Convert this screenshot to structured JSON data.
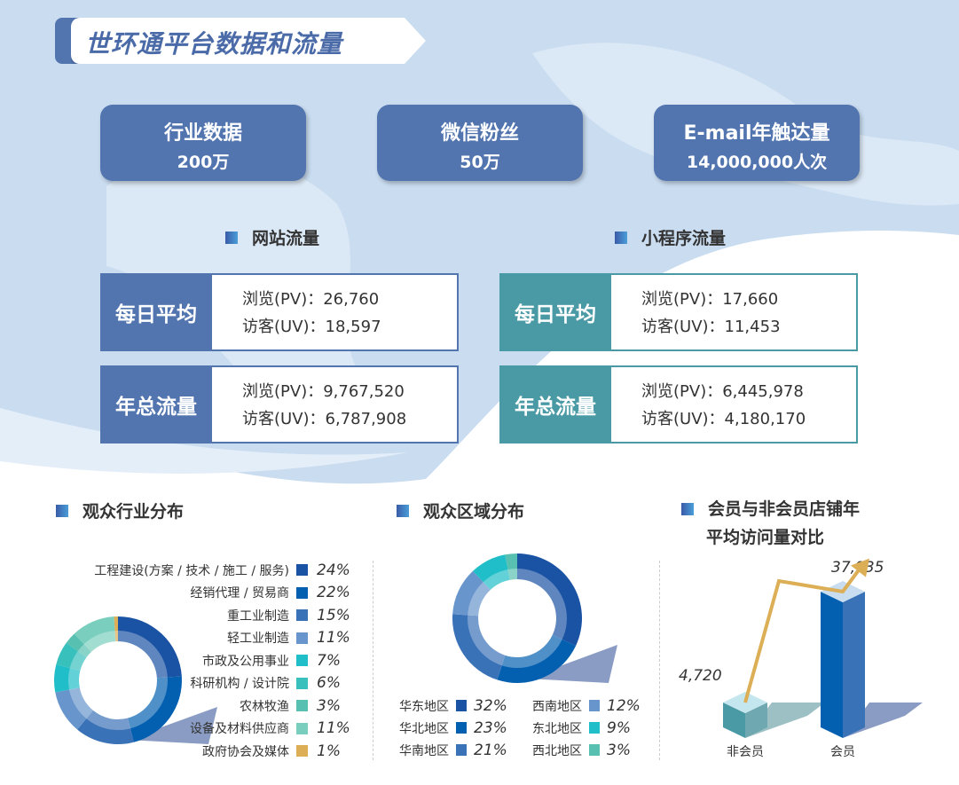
{
  "title": "世环通平台数据和流量",
  "stats": [
    {
      "label": "行业数据",
      "value": "200万"
    },
    {
      "label": "微信粉丝",
      "value": "50万"
    },
    {
      "label": "E-mail年触达量",
      "value": "14,000,000人次"
    }
  ],
  "website": {
    "title": "网站流量",
    "daily": {
      "label": "每日平均",
      "pv": "浏览(PV)：26,760",
      "uv": "访客(UV)：18,597"
    },
    "yearly": {
      "label": "年总流量",
      "pv": "浏览(PV)：9,767,520",
      "uv": "访客(UV)：6,787,908"
    }
  },
  "miniprogram": {
    "title": "小程序流量",
    "daily": {
      "label": "每日平均",
      "pv": "浏览(PV)：17,660",
      "uv": "访客(UV)：11,453"
    },
    "yearly": {
      "label": "年总流量",
      "pv": "浏览(PV)：6,445,978",
      "uv": "访客(UV)：4,180,170"
    }
  },
  "colors": {
    "primary": "#5275b0",
    "teal": "#4a9aa5",
    "gold": "#dcae55"
  },
  "chart_data": [
    {
      "type": "pie",
      "title": "观众行业分布",
      "categories": [
        "工程建设(方案 / 技术 / 施工 / 服务)",
        "经销代理 / 贸易商",
        "重工业制造",
        "轻工业制造",
        "市政及公用事业",
        "科研机构 / 设计院",
        "农林牧渔",
        "设备及材料供应商",
        "政府协会及媒体"
      ],
      "values": [
        24,
        22,
        15,
        11,
        7,
        6,
        3,
        11,
        1
      ],
      "labels": [
        "24%",
        "22%",
        "15%",
        "11%",
        "7%",
        "6%",
        "3%",
        "11%",
        "1%"
      ],
      "colors": [
        "#1a52a4",
        "#0360b0",
        "#3a72b8",
        "#6895cc",
        "#20bec8",
        "#38c0bc",
        "#58c0b0",
        "#7acebe",
        "#dcae55"
      ],
      "legend": "right"
    },
    {
      "type": "pie",
      "title": "观众区域分布",
      "categories": [
        "华东地区",
        "华北地区",
        "华南地区",
        "西南地区",
        "东北地区",
        "西北地区"
      ],
      "values": [
        32,
        23,
        21,
        12,
        9,
        3
      ],
      "labels": [
        "32%",
        "23%",
        "21%",
        "12%",
        "9%",
        "3%"
      ],
      "colors": [
        "#1a52a4",
        "#0360b0",
        "#3a72b8",
        "#6895cc",
        "#20bec8",
        "#58c0b0"
      ],
      "legend": "bottom"
    },
    {
      "type": "bar",
      "title_line1": "会员与非会员店铺年",
      "title_line2": "平均访问量对比",
      "categories": [
        "非会员",
        "会员"
      ],
      "values": [
        4720,
        37935
      ],
      "labels": [
        "4,720",
        "37,935"
      ],
      "colors": [
        "#4a9aa5",
        "#0360b0"
      ]
    }
  ]
}
